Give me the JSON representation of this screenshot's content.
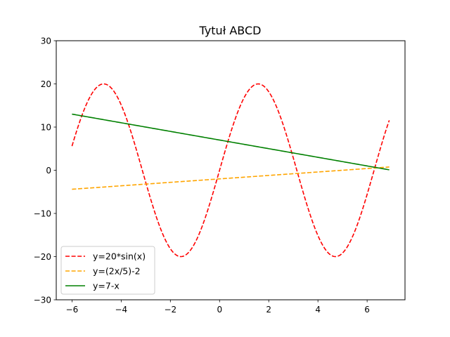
{
  "chart_data": {
    "type": "line",
    "title": "Tytuł ABCD",
    "xlabel": "",
    "ylabel": "",
    "xlim": [
      -6.64,
      7.54
    ],
    "ylim": [
      -30,
      30
    ],
    "xticks": [
      -6,
      -4,
      -2,
      0,
      2,
      4,
      6
    ],
    "xtick_labels": [
      "−6",
      "−4",
      "−2",
      "0",
      "2",
      "4",
      "6"
    ],
    "yticks": [
      -30,
      -20,
      -10,
      0,
      10,
      20,
      30
    ],
    "ytick_labels": [
      "−30",
      "−20",
      "−10",
      "0",
      "10",
      "20",
      "30"
    ],
    "grid": false,
    "legend_position": "lower-left",
    "x_range": [
      -6,
      6.9
    ],
    "series": [
      {
        "name": "y=20*sin(x)",
        "formula": "20*sin(x)",
        "color": "#ff0000",
        "style": "dashed"
      },
      {
        "name": "y=(2x/5)-2",
        "formula": "(2*x/5)-2",
        "color": "#ffa500",
        "style": "dashed"
      },
      {
        "name": "y=7-x",
        "formula": "7-x",
        "color": "#008000",
        "style": "solid"
      }
    ]
  }
}
